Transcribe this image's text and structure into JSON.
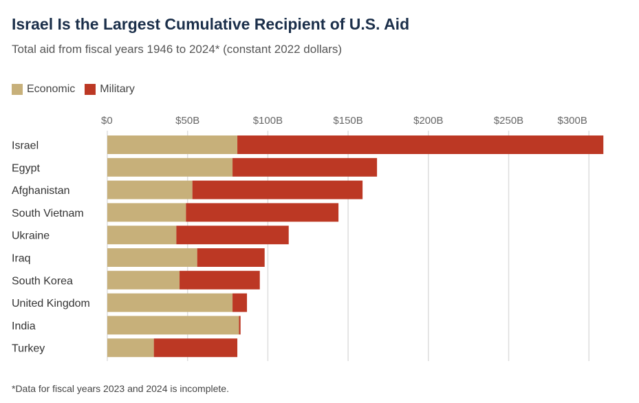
{
  "chart_data": {
    "type": "bar",
    "orientation": "horizontal",
    "stacked": true,
    "title": "Israel Is the Largest Cumulative Recipient of U.S. Aid",
    "subtitle": "Total aid from fiscal years 1946 to 2024* (constant 2022 dollars)",
    "categories": [
      "Israel",
      "Egypt",
      "Afghanistan",
      "South Vietnam",
      "Ukraine",
      "Iraq",
      "South Korea",
      "United Kingdom",
      "India",
      "Turkey"
    ],
    "series": [
      {
        "name": "Economic",
        "color": "#c7b07a",
        "values": [
          81,
          78,
          53,
          49,
          43,
          56,
          45,
          78,
          82,
          29
        ]
      },
      {
        "name": "Military",
        "color": "#bc3824",
        "values": [
          228,
          90,
          106,
          95,
          70,
          42,
          50,
          9,
          1,
          52
        ]
      }
    ],
    "xlim": [
      0,
      320
    ],
    "xticks": [
      0,
      50,
      100,
      150,
      200,
      250,
      300
    ],
    "xtick_labels": [
      "$0",
      "$50B",
      "$100B",
      "$150B",
      "$200B",
      "$250B",
      "$300B"
    ],
    "legend": "top-left",
    "grid": true,
    "footnote": "*Data for fiscal years 2023 and 2024 is incomplete."
  }
}
